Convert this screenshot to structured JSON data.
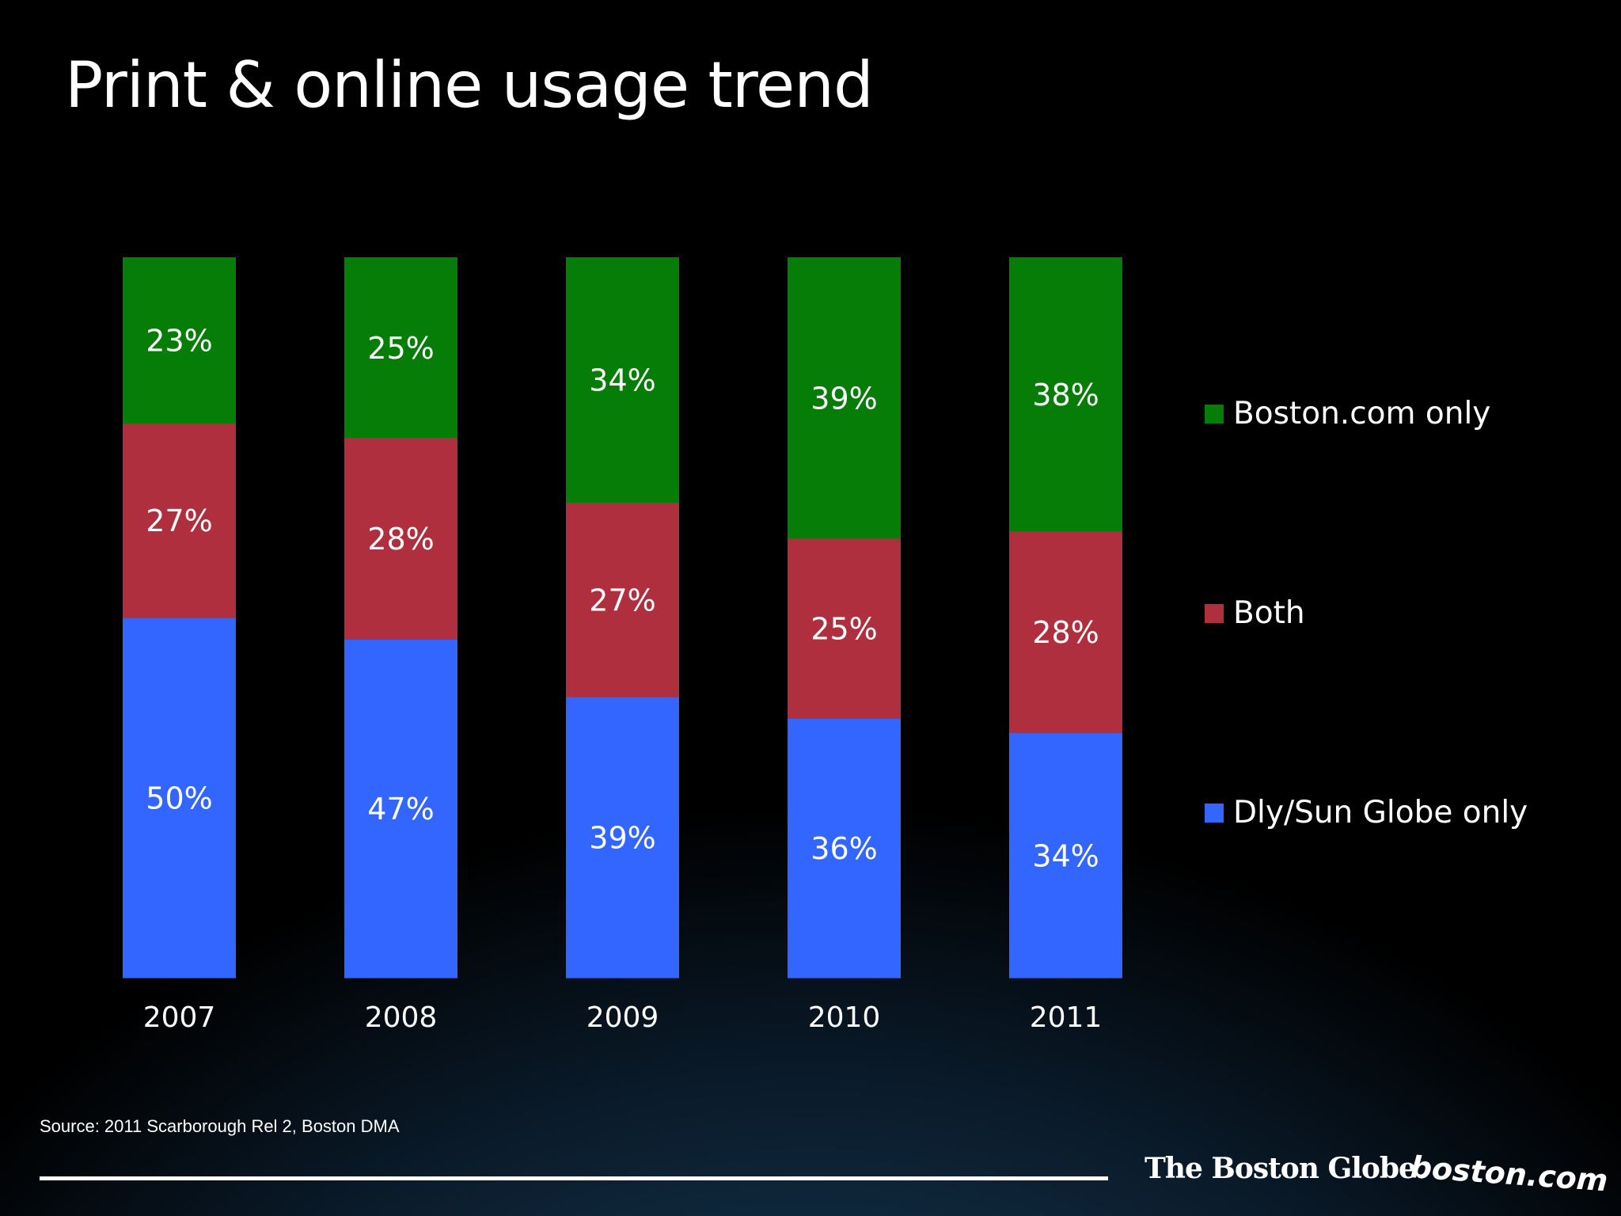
{
  "title": "Print & online usage trend",
  "source": "Source: 2011 Scarborough Rel 2, Boston DMA",
  "logos": {
    "globe": "The Boston Globe",
    "bostoncom": "boston.com"
  },
  "colors": {
    "boston_com_only": "#067d06",
    "both": "#b02f3e",
    "dly_sun_globe_only": "#3366ff"
  },
  "chart_data": {
    "type": "bar",
    "stacked": true,
    "categories": [
      "2007",
      "2008",
      "2009",
      "2010",
      "2011"
    ],
    "series": [
      {
        "name": "Dly/Sun Globe only",
        "values": [
          50,
          47,
          39,
          36,
          34
        ],
        "labels": [
          "50%",
          "47%",
          "39%",
          "36%",
          "34%"
        ]
      },
      {
        "name": "Both",
        "values": [
          27,
          28,
          27,
          25,
          28
        ],
        "labels": [
          "27%",
          "28%",
          "27%",
          "25%",
          "28%"
        ]
      },
      {
        "name": "Boston.com only",
        "values": [
          23,
          25,
          34,
          39,
          38
        ],
        "labels": [
          "23%",
          "25%",
          "34%",
          "39%",
          "38%"
        ]
      }
    ],
    "legend": [
      {
        "name": "Boston.com only",
        "color": "#067d06"
      },
      {
        "name": "Both",
        "color": "#b02f3e"
      },
      {
        "name": "Dly/Sun Globe only",
        "color": "#3366ff"
      }
    ],
    "legend_position": "right",
    "ylim": [
      0,
      100
    ],
    "grid": false
  }
}
